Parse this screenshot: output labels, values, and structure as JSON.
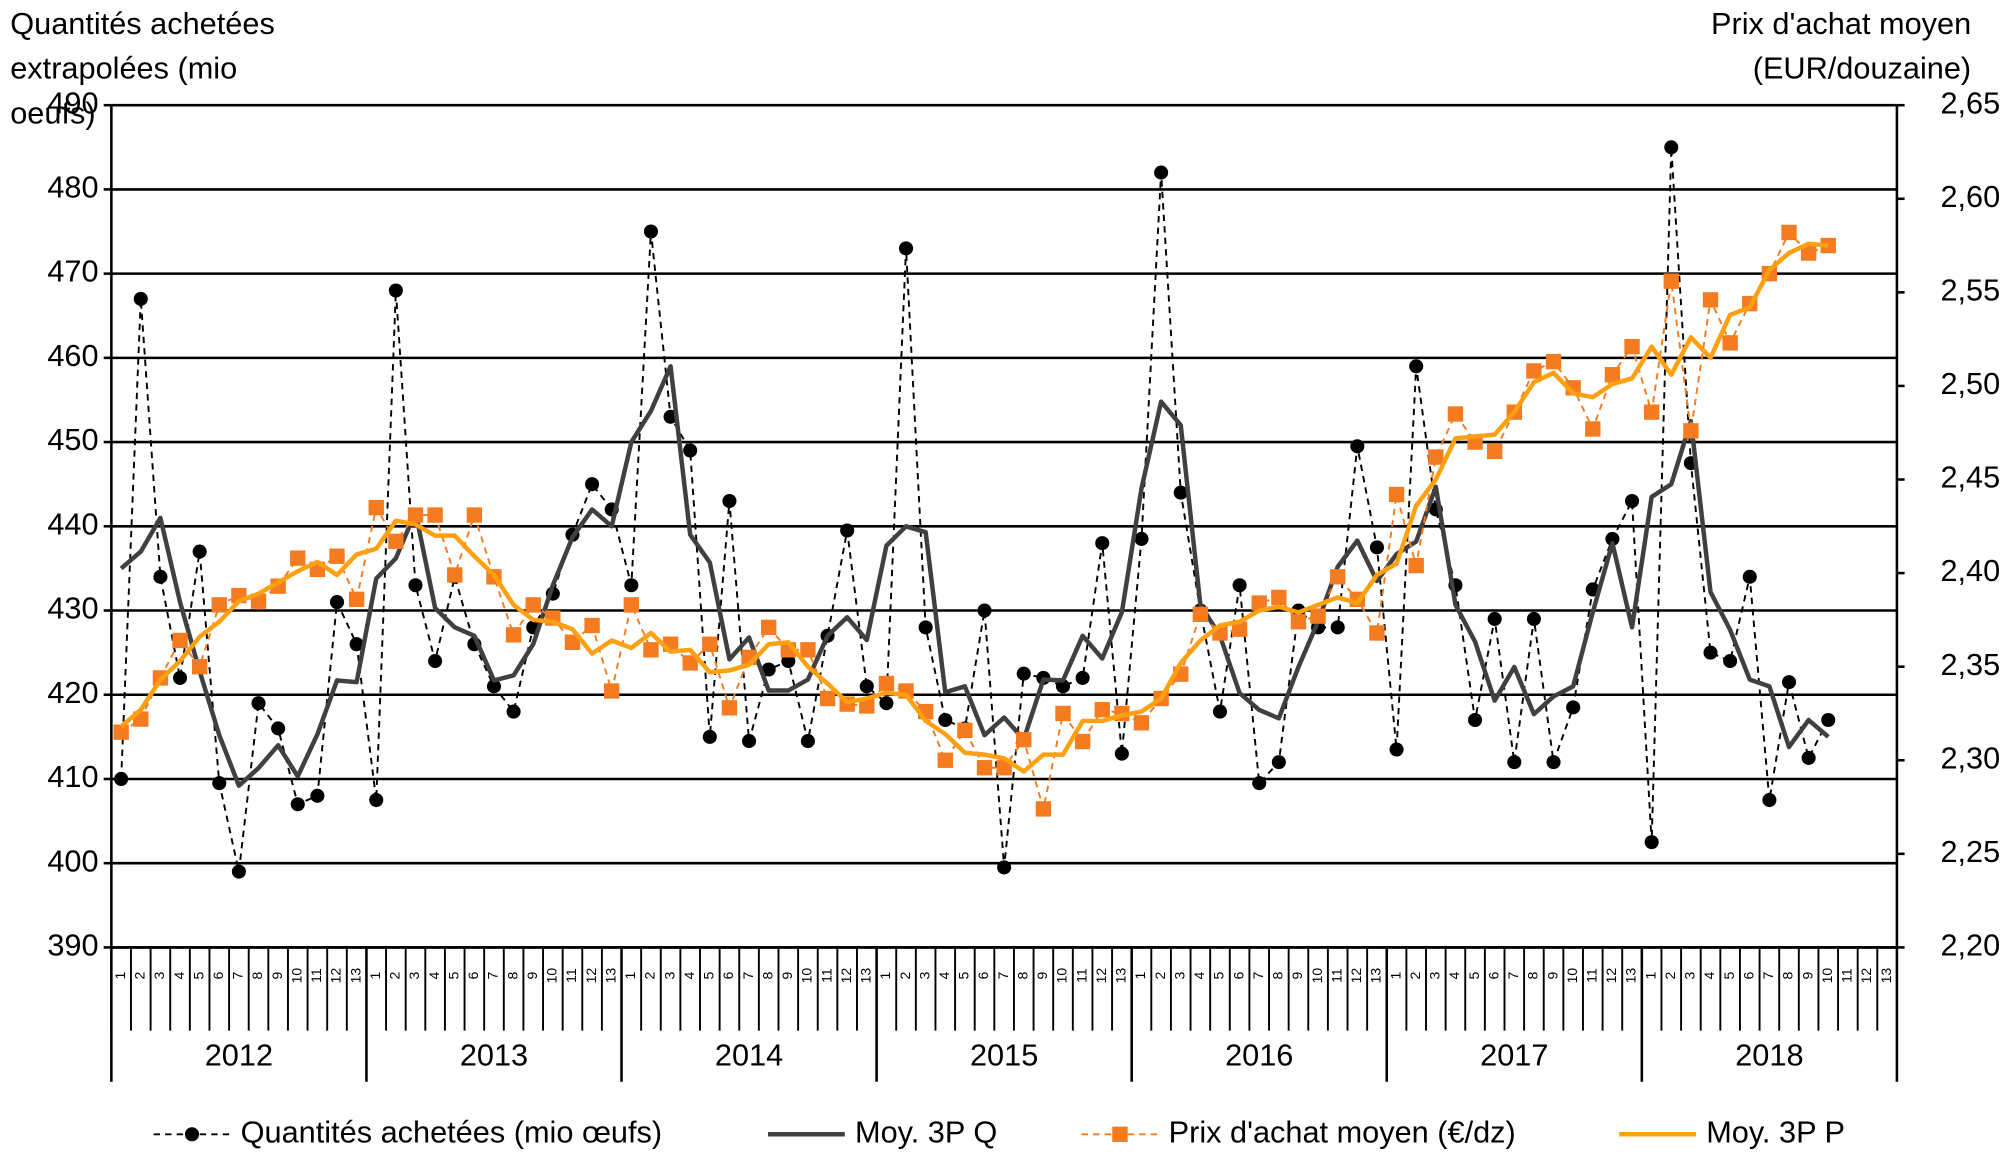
{
  "chart_data": {
    "type": "line",
    "ylabel": [
      "Quantités achetées",
      "extrapolées (mio",
      "oeufs)"
    ],
    "y2label": [
      "Prix d'achat moyen",
      "(EUR/douzaine)"
    ],
    "categories": [
      "1",
      "2",
      "3",
      "4",
      "5",
      "6",
      "7",
      "8",
      "9",
      "10",
      "11",
      "12",
      "13",
      "1",
      "2",
      "3",
      "4",
      "5",
      "6",
      "7",
      "8",
      "9",
      "10",
      "11",
      "12",
      "13",
      "1",
      "2",
      "3",
      "4",
      "5",
      "6",
      "7",
      "8",
      "9",
      "10",
      "11",
      "12",
      "13",
      "1",
      "2",
      "3",
      "4",
      "5",
      "6",
      "7",
      "8",
      "9",
      "10",
      "11",
      "12",
      "13",
      "1",
      "2",
      "3",
      "4",
      "5",
      "6",
      "7",
      "8",
      "9",
      "10",
      "11",
      "12",
      "13",
      "1",
      "2",
      "3",
      "4",
      "5",
      "6",
      "7",
      "8",
      "9",
      "10",
      "11",
      "12",
      "13",
      "1",
      "2",
      "3",
      "4",
      "5",
      "6",
      "7",
      "8",
      "9",
      "10",
      "11",
      "12",
      "13"
    ],
    "groups": [
      "2012",
      "2013",
      "2014",
      "2015",
      "2016",
      "2017",
      "2018"
    ],
    "ylim": [
      390,
      490
    ],
    "yticks": [
      390,
      400,
      410,
      420,
      430,
      440,
      450,
      460,
      470,
      480,
      490
    ],
    "y2lim": [
      2.2,
      2.65
    ],
    "y2ticks": [
      {
        "value": 2.2,
        "label": "2,20"
      },
      {
        "value": 2.25,
        "label": "2,25"
      },
      {
        "value": 2.3,
        "label": "2,30"
      },
      {
        "value": 2.35,
        "label": "2,35"
      },
      {
        "value": 2.4,
        "label": "2,40"
      },
      {
        "value": 2.45,
        "label": "2,45"
      },
      {
        "value": 2.5,
        "label": "2,50"
      },
      {
        "value": 2.55,
        "label": "2,55"
      },
      {
        "value": 2.6,
        "label": "2,60"
      },
      {
        "value": 2.65,
        "label": "2,65"
      }
    ],
    "grid": true,
    "legend": "bottom",
    "series": [
      {
        "name": "Quantités achetées (mio œufs)",
        "color": "#000000",
        "dash": true,
        "marker": "circle",
        "axis": "y",
        "values": [
          410,
          467,
          434,
          422,
          437,
          409.5,
          399,
          419,
          416,
          407,
          408,
          431,
          426,
          407.5,
          468,
          433,
          424,
          434,
          426,
          421,
          418,
          428,
          432,
          439,
          445,
          442,
          433,
          475,
          453,
          449,
          415,
          443,
          414.5,
          423,
          424,
          414.5,
          427,
          439.5,
          421,
          419,
          473,
          428,
          417,
          416,
          430,
          399.5,
          422.5,
          422,
          421,
          422,
          438,
          413,
          438.5,
          482,
          444,
          430,
          418,
          433,
          409.5,
          412,
          430,
          428,
          428,
          449.5,
          437.5,
          413.5,
          459,
          442,
          433,
          417,
          429,
          412,
          429,
          412,
          418.5,
          432.5,
          438.5,
          443,
          402.5,
          485,
          447.5,
          425,
          424,
          434,
          407.5,
          421.5,
          412.5,
          417,
          null,
          null,
          null
        ]
      },
      {
        "name": "Moy. 3P Q",
        "color": "#404040",
        "dash": false,
        "marker": "none",
        "axis": "y",
        "values": [
          435,
          437,
          441,
          431,
          422.8,
          415.2,
          409.2,
          411.3,
          414,
          410.3,
          415.3,
          421.7,
          421.5,
          433.8,
          436.2,
          441.7,
          430.3,
          428,
          427,
          421.7,
          422.3,
          426,
          433,
          438.7,
          442,
          440,
          450,
          453.7,
          459,
          439,
          435.7,
          424.2,
          426.8,
          420.5,
          420.5,
          421.8,
          427,
          429.2,
          426.5,
          437.7,
          440,
          439.3,
          420.3,
          421,
          415.2,
          417.3,
          414.7,
          421.8,
          421.7,
          427,
          424.3,
          429.8,
          444.5,
          454.8,
          452,
          430.7,
          427,
          420.2,
          418.2,
          417.2,
          423.3,
          428.7,
          435.2,
          438.3,
          433.5,
          436.7,
          438.2,
          444.7,
          430.7,
          426.3,
          419.3,
          423.3,
          417.7,
          419.8,
          421,
          429.8,
          438,
          428,
          443.5,
          445,
          452.5,
          432.2,
          427.7,
          421.8,
          421,
          413.8,
          417,
          415,
          null,
          null,
          null
        ]
      },
      {
        "name": "Prix d'achat moyen (€/dz)",
        "color": "#f47b20",
        "dash": true,
        "marker": "square",
        "axis": "y2",
        "values": [
          2.315,
          2.322,
          2.344,
          2.364,
          2.35,
          2.383,
          2.388,
          2.385,
          2.393,
          2.408,
          2.402,
          2.409,
          2.386,
          2.435,
          2.417,
          2.431,
          2.431,
          2.399,
          2.431,
          2.398,
          2.367,
          2.383,
          2.376,
          2.363,
          2.372,
          2.337,
          2.383,
          2.359,
          2.362,
          2.352,
          2.362,
          2.328,
          2.355,
          2.371,
          2.359,
          2.359,
          2.333,
          2.33,
          2.329,
          2.341,
          2.337,
          2.326,
          2.3,
          2.316,
          2.296,
          2.296,
          2.311,
          2.274,
          2.325,
          2.31,
          2.327,
          2.325,
          2.32,
          2.333,
          2.346,
          2.378,
          2.368,
          2.37,
          2.384,
          2.387,
          2.374,
          2.377,
          2.398,
          2.386,
          2.368,
          2.442,
          2.404,
          2.462,
          2.485,
          2.47,
          2.465,
          2.486,
          2.508,
          2.513,
          2.499,
          2.477,
          2.506,
          2.521,
          2.486,
          2.556,
          2.476,
          2.546,
          2.523,
          2.544,
          2.56,
          2.582,
          2.571,
          2.575,
          null,
          null,
          null
        ]
      },
      {
        "name": "Moy. 3P P",
        "color": "#ffa010",
        "dash": false,
        "marker": "none",
        "axis": "y2",
        "values": [
          2.318,
          2.327,
          2.343,
          2.353,
          2.366,
          2.374,
          2.385,
          2.389,
          2.395,
          2.401,
          2.406,
          2.399,
          2.41,
          2.413,
          2.428,
          2.426,
          2.42,
          2.42,
          2.409,
          2.399,
          2.383,
          2.375,
          2.374,
          2.37,
          2.357,
          2.364,
          2.36,
          2.368,
          2.358,
          2.359,
          2.347,
          2.348,
          2.351,
          2.362,
          2.363,
          2.35,
          2.341,
          2.331,
          2.333,
          2.336,
          2.335,
          2.321,
          2.314,
          2.304,
          2.303,
          2.301,
          2.294,
          2.303,
          2.303,
          2.321,
          2.321,
          2.324,
          2.326,
          2.333,
          2.352,
          2.364,
          2.372,
          2.374,
          2.38,
          2.382,
          2.379,
          2.383,
          2.387,
          2.384,
          2.399,
          2.405,
          2.436,
          2.45,
          2.472,
          2.473,
          2.474,
          2.486,
          2.502,
          2.507,
          2.496,
          2.494,
          2.501,
          2.504,
          2.521,
          2.506,
          2.526,
          2.515,
          2.538,
          2.542,
          2.562,
          2.571,
          2.576,
          2.575,
          null,
          null,
          null
        ]
      }
    ]
  }
}
